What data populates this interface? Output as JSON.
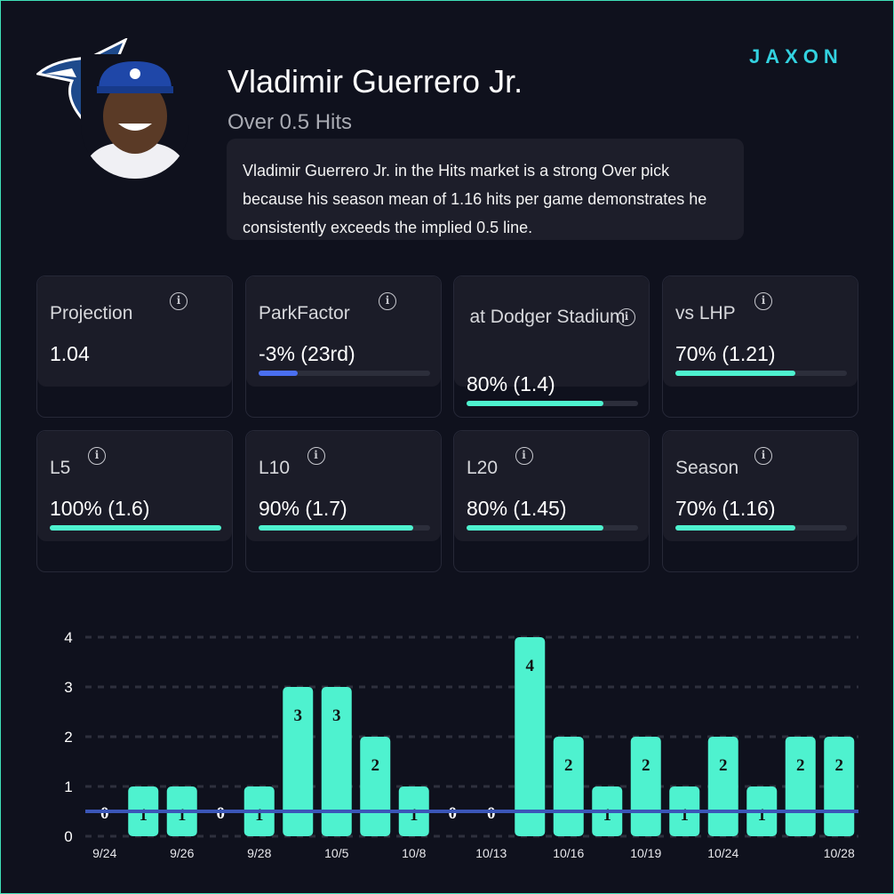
{
  "header": {
    "player_name": "Vladimir Guerrero Jr.",
    "market": "Over 0.5 Hits",
    "description": "Vladimir Guerrero Jr. in the Hits market is a strong Over pick because his season mean of 1.16 hits per game demonstrates he consistently exceeds the implied 0.5 line.",
    "brand": "JAXON",
    "team_logo": "toronto-blue-jays-logo"
  },
  "cards": [
    {
      "label": "Projection",
      "value": "1.04",
      "progress": null
    },
    {
      "label": "ParkFactor",
      "value": "-3% (23rd)",
      "progress": 23,
      "color": "#4a6ff0"
    },
    {
      "label": "at Dodger Stadium",
      "value": "80% (1.4)",
      "progress": 80,
      "color": "#4ef2cf"
    },
    {
      "label": "vs LHP",
      "value": "70% (1.21)",
      "progress": 70,
      "color": "#4ef2cf"
    },
    {
      "label": "L5",
      "value": "100% (1.6)",
      "progress": 100,
      "color": "#4ef2cf"
    },
    {
      "label": "L10",
      "value": "90% (1.7)",
      "progress": 90,
      "color": "#4ef2cf"
    },
    {
      "label": "L20",
      "value": "80% (1.45)",
      "progress": 80,
      "color": "#4ef2cf"
    },
    {
      "label": "Season",
      "value": "70% (1.16)",
      "progress": 70,
      "color": "#4ef2cf"
    }
  ],
  "chart_data": {
    "type": "bar",
    "categories": [
      "9/24",
      "",
      "9/26",
      "",
      "9/28",
      "",
      "10/5",
      "",
      "10/8",
      "",
      "10/13",
      "",
      "10/16",
      "",
      "10/19",
      "",
      "10/24",
      "",
      "",
      "10/28"
    ],
    "values": [
      0,
      1,
      1,
      0,
      1,
      3,
      3,
      2,
      1,
      0,
      0,
      4,
      2,
      1,
      2,
      1,
      2,
      1,
      2,
      2
    ],
    "yticks": [
      "0",
      "1",
      "2",
      "3",
      "4"
    ],
    "ylim": [
      0,
      4
    ],
    "line_value": 0.5,
    "bar_color": "#4ef2cf",
    "line_color": "#3b56b8",
    "grid": "dashed"
  }
}
